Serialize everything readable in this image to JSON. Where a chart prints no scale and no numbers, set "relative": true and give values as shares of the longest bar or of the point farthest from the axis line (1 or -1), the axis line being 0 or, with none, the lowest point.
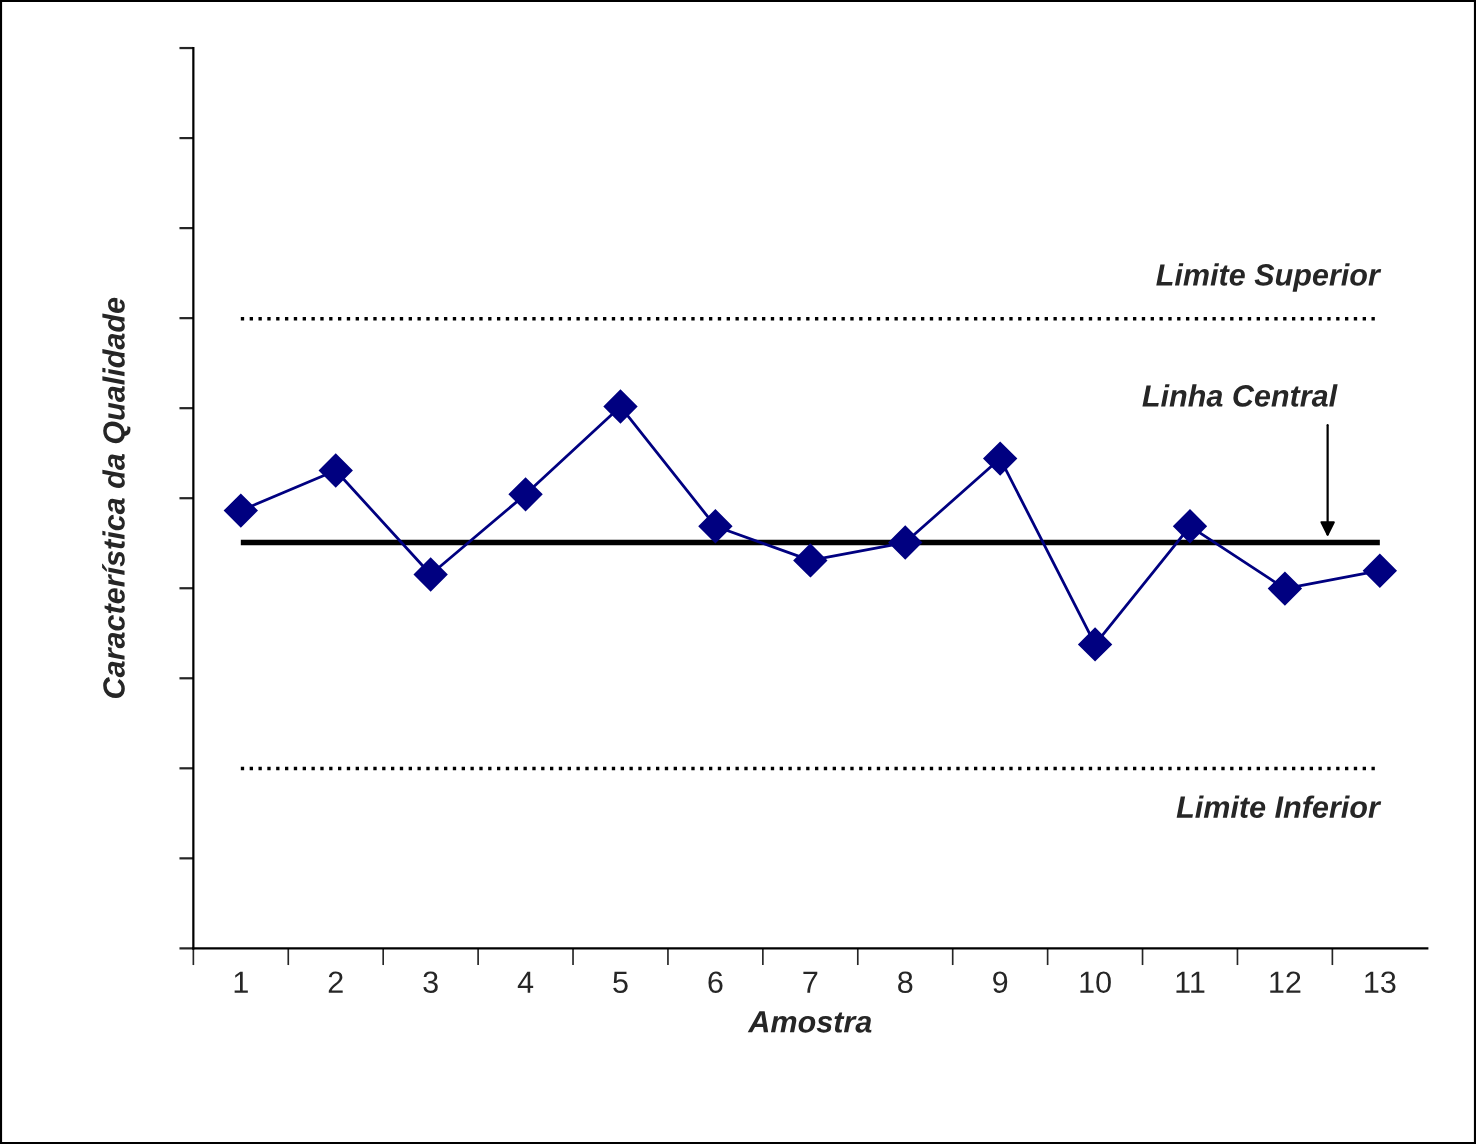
{
  "chart_data": {
    "type": "line",
    "xlabel": "Amostra",
    "ylabel": "Característica da Qualidade",
    "categories": [
      "1",
      "2",
      "3",
      "4",
      "5",
      "6",
      "7",
      "8",
      "9",
      "10",
      "11",
      "12",
      "13"
    ],
    "series": [
      {
        "color": "#000080",
        "values": [
          0.808,
          0.882,
          0.69,
          0.838,
          1.0,
          0.779,
          0.716,
          0.749,
          0.904,
          0.561,
          0.779,
          0.664,
          0.697
        ]
      }
    ],
    "relative": true,
    "marker": "diamond",
    "line_style": "solid",
    "grid": false,
    "legend": false,
    "tick_labels": "x",
    "ref_lines": [
      {
        "axis": "y",
        "value": 1.162,
        "label": "Limite Superior",
        "line_style": "dotted",
        "color": "#000000"
      },
      {
        "axis": "y",
        "value": 0.749,
        "label": "Linha Central",
        "line_style": "solid",
        "color": "#000000"
      },
      {
        "axis": "y",
        "value": 0.332,
        "label": "Limite Inferior",
        "line_style": "dotted",
        "color": "#000000"
      }
    ]
  }
}
